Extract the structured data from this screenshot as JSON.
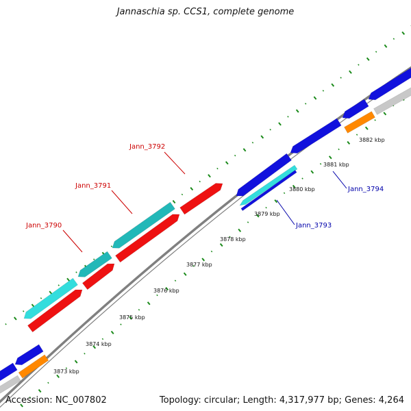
{
  "title": "Jannaschia sp. CCS1, complete genome",
  "footer": {
    "accession": "Accession: NC_007802",
    "summary": "Topology: circular; Length: 4,317,977 bp; Genes: 4,264"
  },
  "colors": {
    "backbone": "#808080",
    "tick": "#1a8a1a",
    "red": "#ee1111",
    "cyan": "#33dddd",
    "teal": "#22b8b8",
    "blue": "#1111dd",
    "orange": "#ff8800",
    "gray": "#c8c8c8",
    "label_red": "#cc0000",
    "label_blue": "#0000aa"
  },
  "tick_labels": [
    "3873 kbp",
    "3874 kbp",
    "3875 kbp",
    "3876 kbp",
    "3877 kbp",
    "3878 kbp",
    "3879 kbp",
    "3880 kbp",
    "3881 kbp",
    "3882 kbp"
  ],
  "gene_labels": [
    {
      "name": "Jann_3790",
      "color": "label_red"
    },
    {
      "name": "Jann_3791",
      "color": "label_red"
    },
    {
      "name": "Jann_3792",
      "color": "label_red"
    },
    {
      "name": "Jann_3793",
      "color": "label_blue"
    },
    {
      "name": "Jann_3794",
      "color": "label_blue"
    }
  ]
}
